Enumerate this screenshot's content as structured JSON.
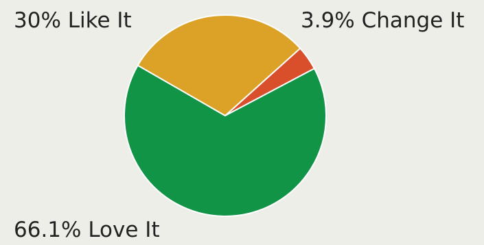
{
  "chart_data": {
    "type": "pie",
    "title": "",
    "slices": [
      {
        "label": "Change It",
        "value": 3.9,
        "display": "3.9% Change It",
        "color": "#d94f2b"
      },
      {
        "label": "Love It",
        "value": 66.1,
        "display": "66.1% Love It",
        "color": "#129447"
      },
      {
        "label": "Like It",
        "value": 30,
        "display": "30% Like It",
        "color": "#dba227"
      }
    ],
    "start_direction": "north-east",
    "legend": "none"
  },
  "colors": {
    "background": "#eeeee9",
    "slice_border": "#ffffff"
  }
}
